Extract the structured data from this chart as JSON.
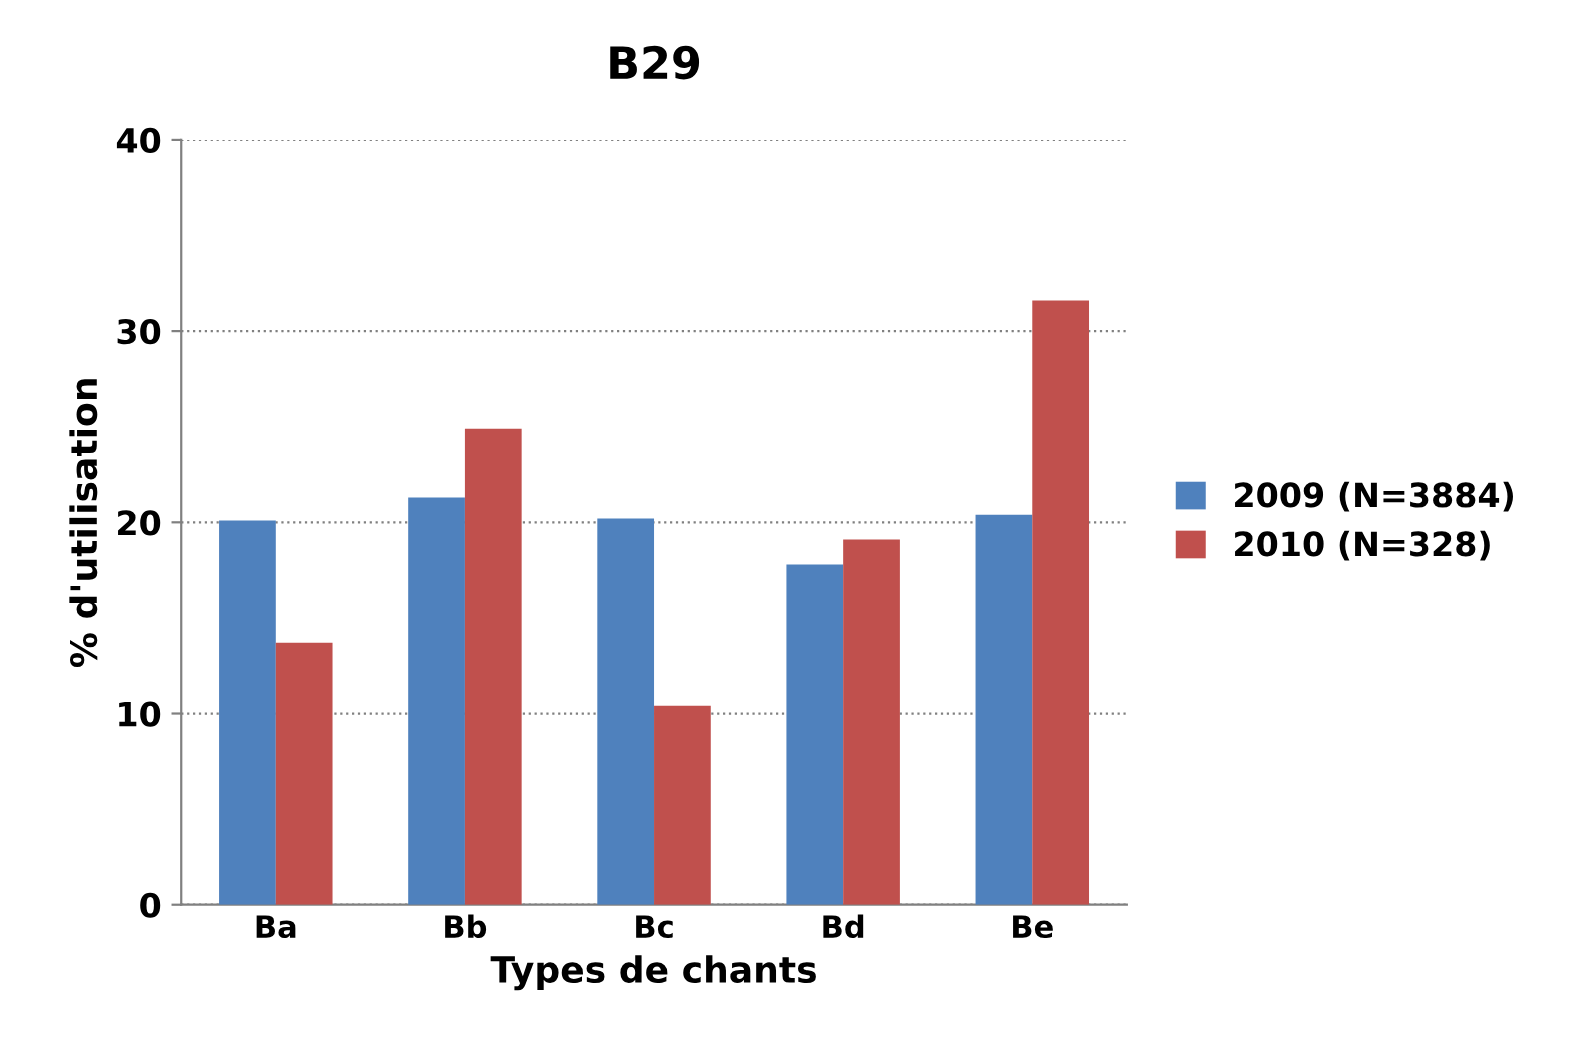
{
  "chart_data": {
    "type": "bar",
    "title": "B29",
    "xlabel": "Types de chants",
    "ylabel": "% d'utilisation",
    "categories": [
      "Ba",
      "Bb",
      "Bc",
      "Bd",
      "Be"
    ],
    "series": [
      {
        "name": "2009 (N=3884)",
        "color": "#4f81bd",
        "values": [
          20.1,
          21.3,
          20.2,
          17.8,
          20.4
        ]
      },
      {
        "name": "2010 (N=328)",
        "color": "#c0504d",
        "values": [
          13.7,
          24.9,
          10.4,
          19.1,
          31.6
        ]
      }
    ],
    "ylim": [
      0,
      40
    ],
    "yticks": [
      0,
      10,
      20,
      30,
      40
    ],
    "grid": "y",
    "legend": "right"
  }
}
